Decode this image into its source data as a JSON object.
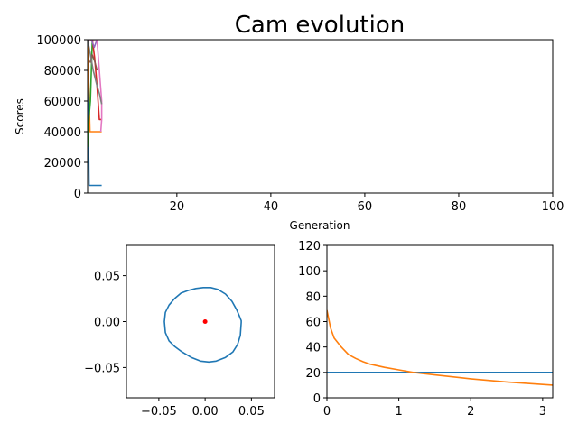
{
  "figure_title": "Cam evolution",
  "colors": {
    "c0": "#1f77b4",
    "c1": "#ff7f0e",
    "c2": "#2ca02c",
    "c3": "#d62728",
    "c4": "#9467bd",
    "c5": "#8c564b",
    "c6": "#e377c2",
    "c7": "#7f7f7f"
  },
  "chart_data": [
    {
      "id": "scores",
      "type": "line",
      "title": "",
      "xlabel": "Generation",
      "ylabel": "Scores",
      "xlim": [
        1,
        100
      ],
      "ylim": [
        0,
        100000
      ],
      "xticks": [
        20,
        40,
        60,
        80,
        100
      ],
      "yticks": [
        0,
        20000,
        40000,
        60000,
        80000,
        100000
      ],
      "grid": false,
      "series": [
        {
          "color": "c0",
          "x": [
            1,
            1.1,
            1.25,
            1.3,
            2,
            3,
            4
          ],
          "y": [
            100000,
            50000,
            20000,
            5000,
            5000,
            5000,
            5000
          ]
        },
        {
          "color": "c1",
          "x": [
            1,
            1.5,
            2,
            2.5,
            3,
            3.5,
            4
          ],
          "y": [
            100000,
            40000,
            40000,
            40000,
            40000,
            40000,
            40000
          ]
        },
        {
          "color": "c2",
          "x": [
            1,
            1.3,
            1.6,
            2,
            2.3
          ],
          "y": [
            30000,
            50000,
            60000,
            100000,
            100000
          ]
        },
        {
          "color": "c3",
          "x": [
            1.5,
            2,
            2.5,
            3,
            3.5,
            4
          ],
          "y": [
            100000,
            100000,
            88000,
            70000,
            48000,
            48000
          ]
        },
        {
          "color": "c4",
          "x": [
            1.8,
            2.4,
            3
          ],
          "y": [
            100000,
            95000,
            100000
          ]
        },
        {
          "color": "c5",
          "x": [
            1.5,
            2,
            2.5,
            3
          ],
          "y": [
            85000,
            90000,
            86000,
            80000
          ]
        },
        {
          "color": "c6",
          "x": [
            1.3,
            2,
            2.5,
            3,
            3.5,
            4,
            4,
            3.8
          ],
          "y": [
            100000,
            100000,
            100000,
            100000,
            80000,
            60000,
            48000,
            40000
          ]
        },
        {
          "color": "c7",
          "x": [
            1,
            1.5,
            2.2,
            3,
            3.5,
            4
          ],
          "y": [
            100000,
            92000,
            80000,
            70000,
            65000,
            58000
          ]
        }
      ]
    },
    {
      "id": "cam_profile",
      "type": "line",
      "title": "",
      "xlim": [
        -0.085,
        0.075
      ],
      "ylim": [
        -0.083,
        0.083
      ],
      "xticks": [
        -0.05,
        0.0,
        0.05
      ],
      "yticks": [
        0.05,
        0.0,
        -0.05
      ],
      "xtick_labels": [
        "−0.05",
        "0.00",
        "0.05"
      ],
      "ytick_labels": [
        "0.05",
        "0.00",
        "−0.05"
      ],
      "grid": false,
      "series": [
        {
          "color": "c0",
          "x": [
            0.039,
            0.038,
            0.035,
            0.03,
            0.022,
            0.012,
            0.004,
            -0.005,
            -0.015,
            -0.025,
            -0.033,
            -0.039,
            -0.043,
            -0.044,
            -0.043,
            -0.039,
            -0.033,
            -0.026,
            -0.018,
            -0.01,
            -0.002,
            0.006,
            0.014,
            0.022,
            0.029,
            0.034,
            0.037,
            0.039,
            0.039
          ],
          "y": [
            -0.001,
            -0.015,
            -0.025,
            -0.033,
            -0.039,
            -0.043,
            -0.044,
            -0.043,
            -0.039,
            -0.033,
            -0.027,
            -0.021,
            -0.012,
            0.0,
            0.01,
            0.018,
            0.025,
            0.031,
            0.034,
            0.036,
            0.037,
            0.037,
            0.035,
            0.03,
            0.022,
            0.013,
            0.006,
            0.001,
            -0.001
          ]
        },
        {
          "color": "#ff0000",
          "marker": true,
          "x": [
            0.0
          ],
          "y": [
            0.0
          ]
        }
      ]
    },
    {
      "id": "curves",
      "type": "line",
      "title": "",
      "xlim": [
        0,
        3.14
      ],
      "ylim": [
        0,
        120
      ],
      "xticks": [
        0,
        1,
        2,
        3
      ],
      "yticks": [
        0,
        20,
        40,
        60,
        80,
        100,
        120
      ],
      "grid": false,
      "series": [
        {
          "color": "c0",
          "x": [
            0,
            3.14
          ],
          "y": [
            20,
            20
          ]
        },
        {
          "color": "c1",
          "x": [
            0,
            0.05,
            0.1,
            0.2,
            0.3,
            0.4,
            0.5,
            0.6,
            0.8,
            1.0,
            1.2,
            1.5,
            2.0,
            2.5,
            3.0,
            3.14
          ],
          "y": [
            69,
            55,
            47,
            40,
            34,
            31,
            28.5,
            26.5,
            24,
            22,
            20,
            18,
            15,
            12.5,
            10.5,
            10
          ]
        }
      ]
    }
  ]
}
